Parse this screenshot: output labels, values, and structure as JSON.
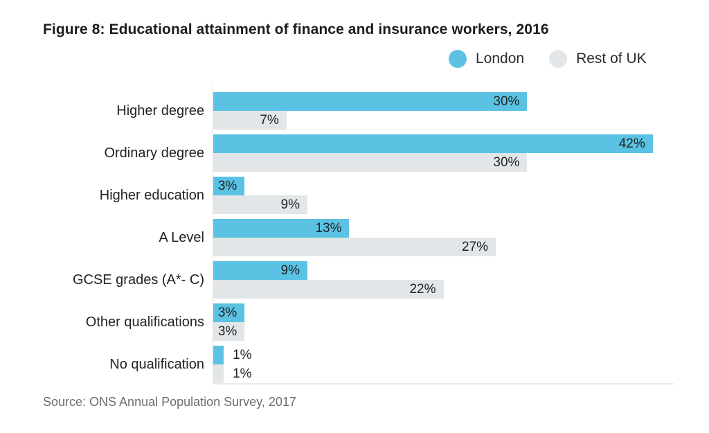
{
  "title": "Figure 8: Educational attainment of finance and insurance workers, 2016",
  "legend": [
    {
      "name": "London",
      "color": "#5bc2e3"
    },
    {
      "name": "Rest of UK",
      "color": "#e2e6e8"
    }
  ],
  "chart_data": {
    "type": "bar",
    "orientation": "horizontal",
    "title": "Figure 8: Educational attainment of finance and insurance workers, 2016",
    "categories": [
      "Higher degree",
      "Ordinary degree",
      "Higher education",
      "A Level",
      "GCSE grades (A*- C)",
      "Other qualifications",
      "No qualification"
    ],
    "series": [
      {
        "name": "London",
        "color": "#5bc2e3",
        "values": [
          30,
          42,
          3,
          13,
          9,
          3,
          1
        ]
      },
      {
        "name": "Rest of UK",
        "color": "#e2e6e8",
        "values": [
          7,
          30,
          9,
          27,
          22,
          3,
          1
        ]
      }
    ],
    "value_suffix": "%",
    "xlim": [
      0,
      44
    ],
    "grid": false,
    "data_labels": true,
    "legend_position": "top-right",
    "axis_color": "#e2e2e2",
    "baseline_color": "#ebebeb"
  },
  "source": "Source: ONS Annual Population Survey, 2017"
}
